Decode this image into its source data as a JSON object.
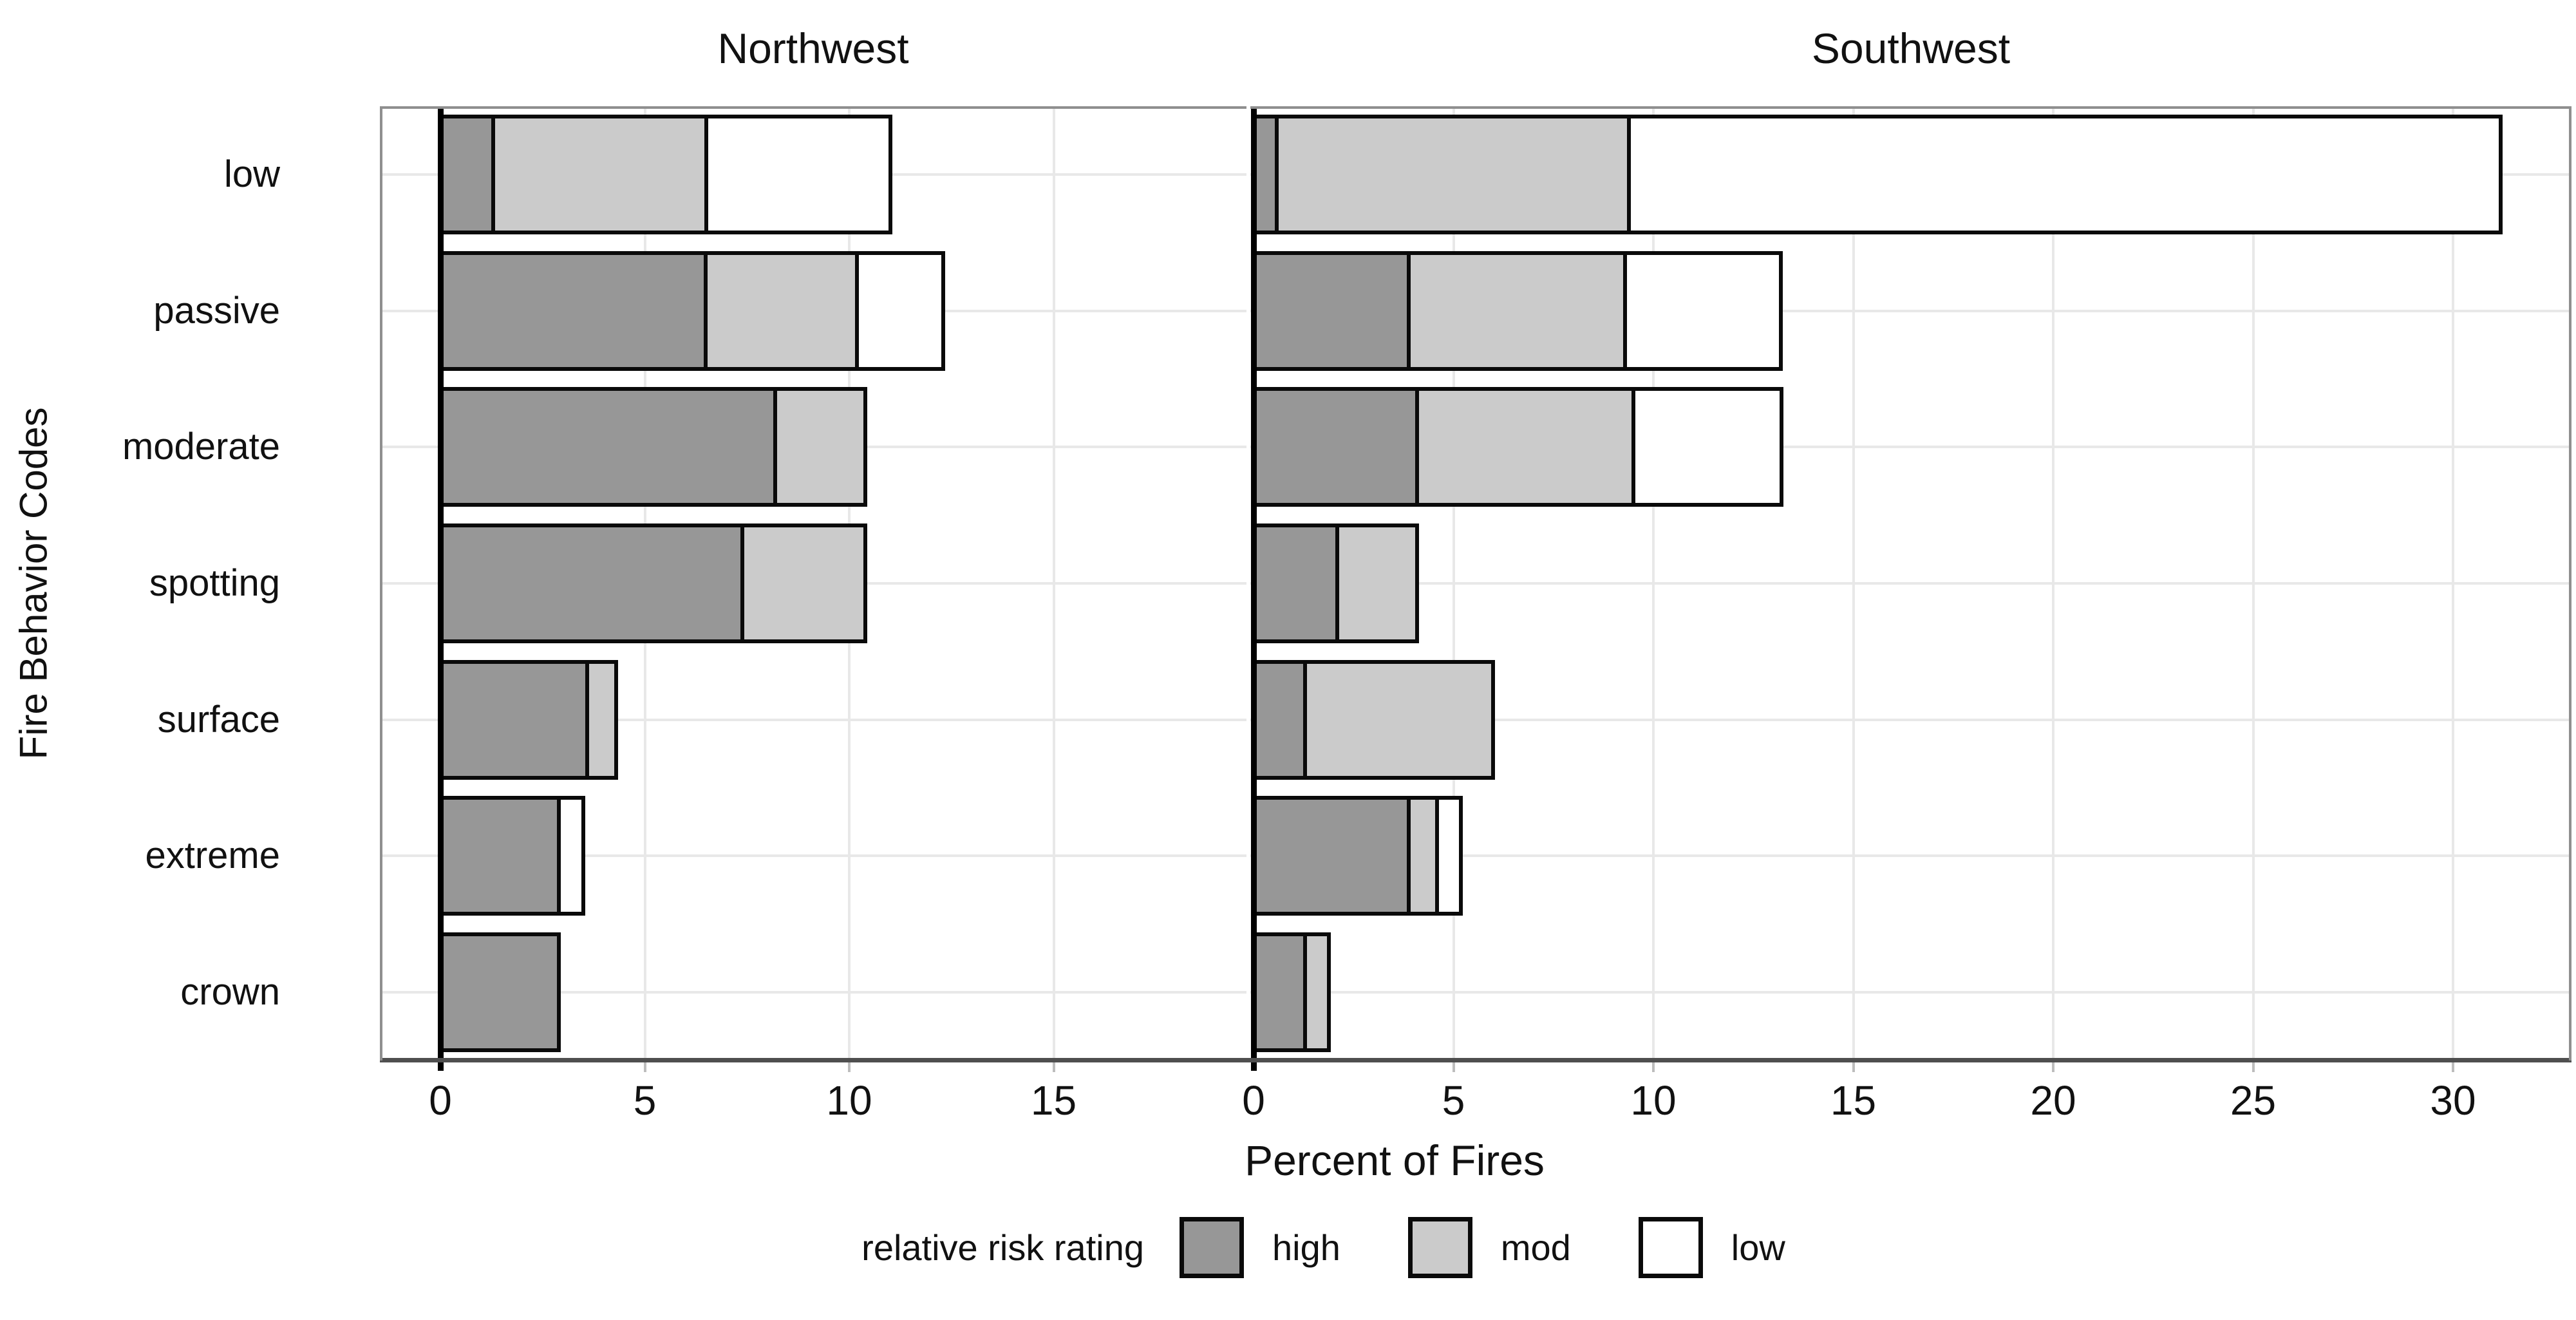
{
  "chart_data": {
    "type": "bar",
    "orientation": "horizontal",
    "stacked": true,
    "xlabel": "Percent of Fires",
    "ylabel": "Fire Behavior Codes",
    "categories": [
      "low",
      "passive",
      "moderate",
      "spotting",
      "surface",
      "extreme",
      "crown"
    ],
    "grid": true,
    "legend": {
      "title": "relative risk rating",
      "position": "bottom",
      "entries": [
        {
          "label": "high",
          "color": "#979797"
        },
        {
          "label": "mod",
          "color": "#cbcbcb"
        },
        {
          "label": "low",
          "color": "#ffffff"
        }
      ]
    },
    "facets": [
      {
        "title": "Northwest",
        "xticks": [
          0,
          5,
          10,
          15
        ],
        "xlim": [
          0,
          19.7
        ],
        "series": [
          {
            "name": "high",
            "values": [
              1.4,
              6.6,
              8.3,
              7.5,
              3.7,
              3.0,
              3.0
            ]
          },
          {
            "name": "mod",
            "values": [
              5.3,
              3.8,
              2.3,
              3.1,
              0.8,
              0,
              0
            ]
          },
          {
            "name": "low",
            "values": [
              4.6,
              2.2,
              0,
              0,
              0,
              0.7,
              0
            ]
          }
        ]
      },
      {
        "title": "Southwest",
        "xticks": [
          0,
          5,
          10,
          15,
          20,
          25,
          30
        ],
        "xlim": [
          0,
          33
        ],
        "series": [
          {
            "name": "high",
            "values": [
              0.7,
              4.0,
              4.2,
              2.2,
              1.4,
              4.0,
              1.4
            ]
          },
          {
            "name": "mod",
            "values": [
              8.9,
              5.5,
              5.5,
              2.1,
              4.8,
              0.8,
              0.7
            ]
          },
          {
            "name": "low",
            "values": [
              21.9,
              4.0,
              3.8,
              0,
              0,
              0.7,
              0
            ]
          }
        ]
      }
    ],
    "colors": {
      "grid": "#e8e8e8",
      "axis_line": "#4f4f4f",
      "tick_mark": "#bdbdbd",
      "bar_border": "#0a0a0a",
      "panel_border": "#8f8f8f",
      "text": "#111111",
      "background": "#ffffff"
    }
  }
}
